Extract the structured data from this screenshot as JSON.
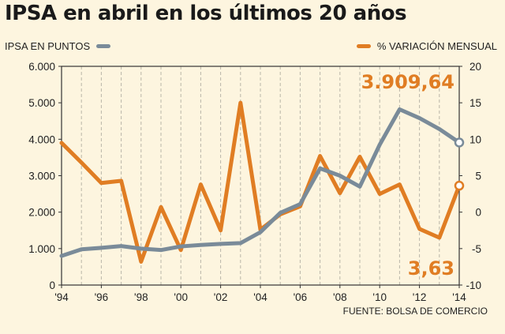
{
  "title": "IPSA en abril en los últimos 20 años",
  "legend": {
    "left_label": "IPSA EN PUNTOS",
    "right_label": "% VARIACIÓN MENSUAL"
  },
  "source": "FUENTE: BOLSA DE COMERCIO",
  "colors": {
    "background": "#fdf5df",
    "ipsa_line": "#7a8b99",
    "variation_line": "#e07d23",
    "grid": "#b9b6a8",
    "axis": "#333333"
  },
  "chart_data": {
    "type": "line",
    "x": [
      1994,
      1995,
      1996,
      1997,
      1998,
      1999,
      2000,
      2001,
      2002,
      2003,
      2004,
      2005,
      2006,
      2007,
      2008,
      2009,
      2010,
      2011,
      2012,
      2013,
      2014
    ],
    "x_tick_labels": [
      "'94",
      "'96",
      "'98",
      "'00",
      "'02",
      "'04",
      "'06",
      "'08",
      "'10",
      "'12",
      "'14"
    ],
    "x_tick_years": [
      1994,
      1996,
      1998,
      2000,
      2002,
      2004,
      2006,
      2008,
      2010,
      2012,
      2014
    ],
    "xlim": [
      1994,
      2014
    ],
    "series": [
      {
        "name": "IPSA EN PUNTOS",
        "axis": "left",
        "values": [
          800,
          980,
          1020,
          1070,
          1000,
          960,
          1060,
          1100,
          1130,
          1150,
          1450,
          1980,
          2220,
          3200,
          3000,
          2700,
          3850,
          4820,
          4580,
          4280,
          3909.64
        ]
      },
      {
        "name": "% VARIACIÓN MENSUAL",
        "axis": "right",
        "values": [
          9.5,
          6.8,
          4.0,
          4.3,
          -6.8,
          0.7,
          -5.2,
          3.8,
          -2.5,
          15.0,
          -2.4,
          -0.3,
          0.8,
          7.7,
          2.6,
          7.6,
          2.5,
          3.8,
          -2.3,
          -3.5,
          3.63
        ]
      }
    ],
    "left_axis": {
      "ylim": [
        0,
        6000
      ],
      "ticks": [
        0,
        1000,
        2000,
        3000,
        4000,
        5000,
        6000
      ],
      "tick_labels": [
        "0",
        "1.000",
        "2.000",
        "3.000",
        "4.000",
        "5.000",
        "6.000"
      ]
    },
    "right_axis": {
      "ylim": [
        -10,
        20
      ],
      "ticks": [
        -10,
        -5,
        0,
        5,
        10,
        15,
        20
      ],
      "tick_labels": [
        "-10",
        "-5",
        "0",
        "5",
        "10",
        "15",
        "20"
      ]
    },
    "grid": {
      "vertical": true,
      "style": "dashed"
    },
    "annotations": [
      {
        "text": "3.909,64",
        "series": "IPSA EN PUNTOS",
        "year": 2014
      },
      {
        "text": "3,63",
        "series": "% VARIACIÓN MENSUAL",
        "year": 2014
      }
    ]
  }
}
